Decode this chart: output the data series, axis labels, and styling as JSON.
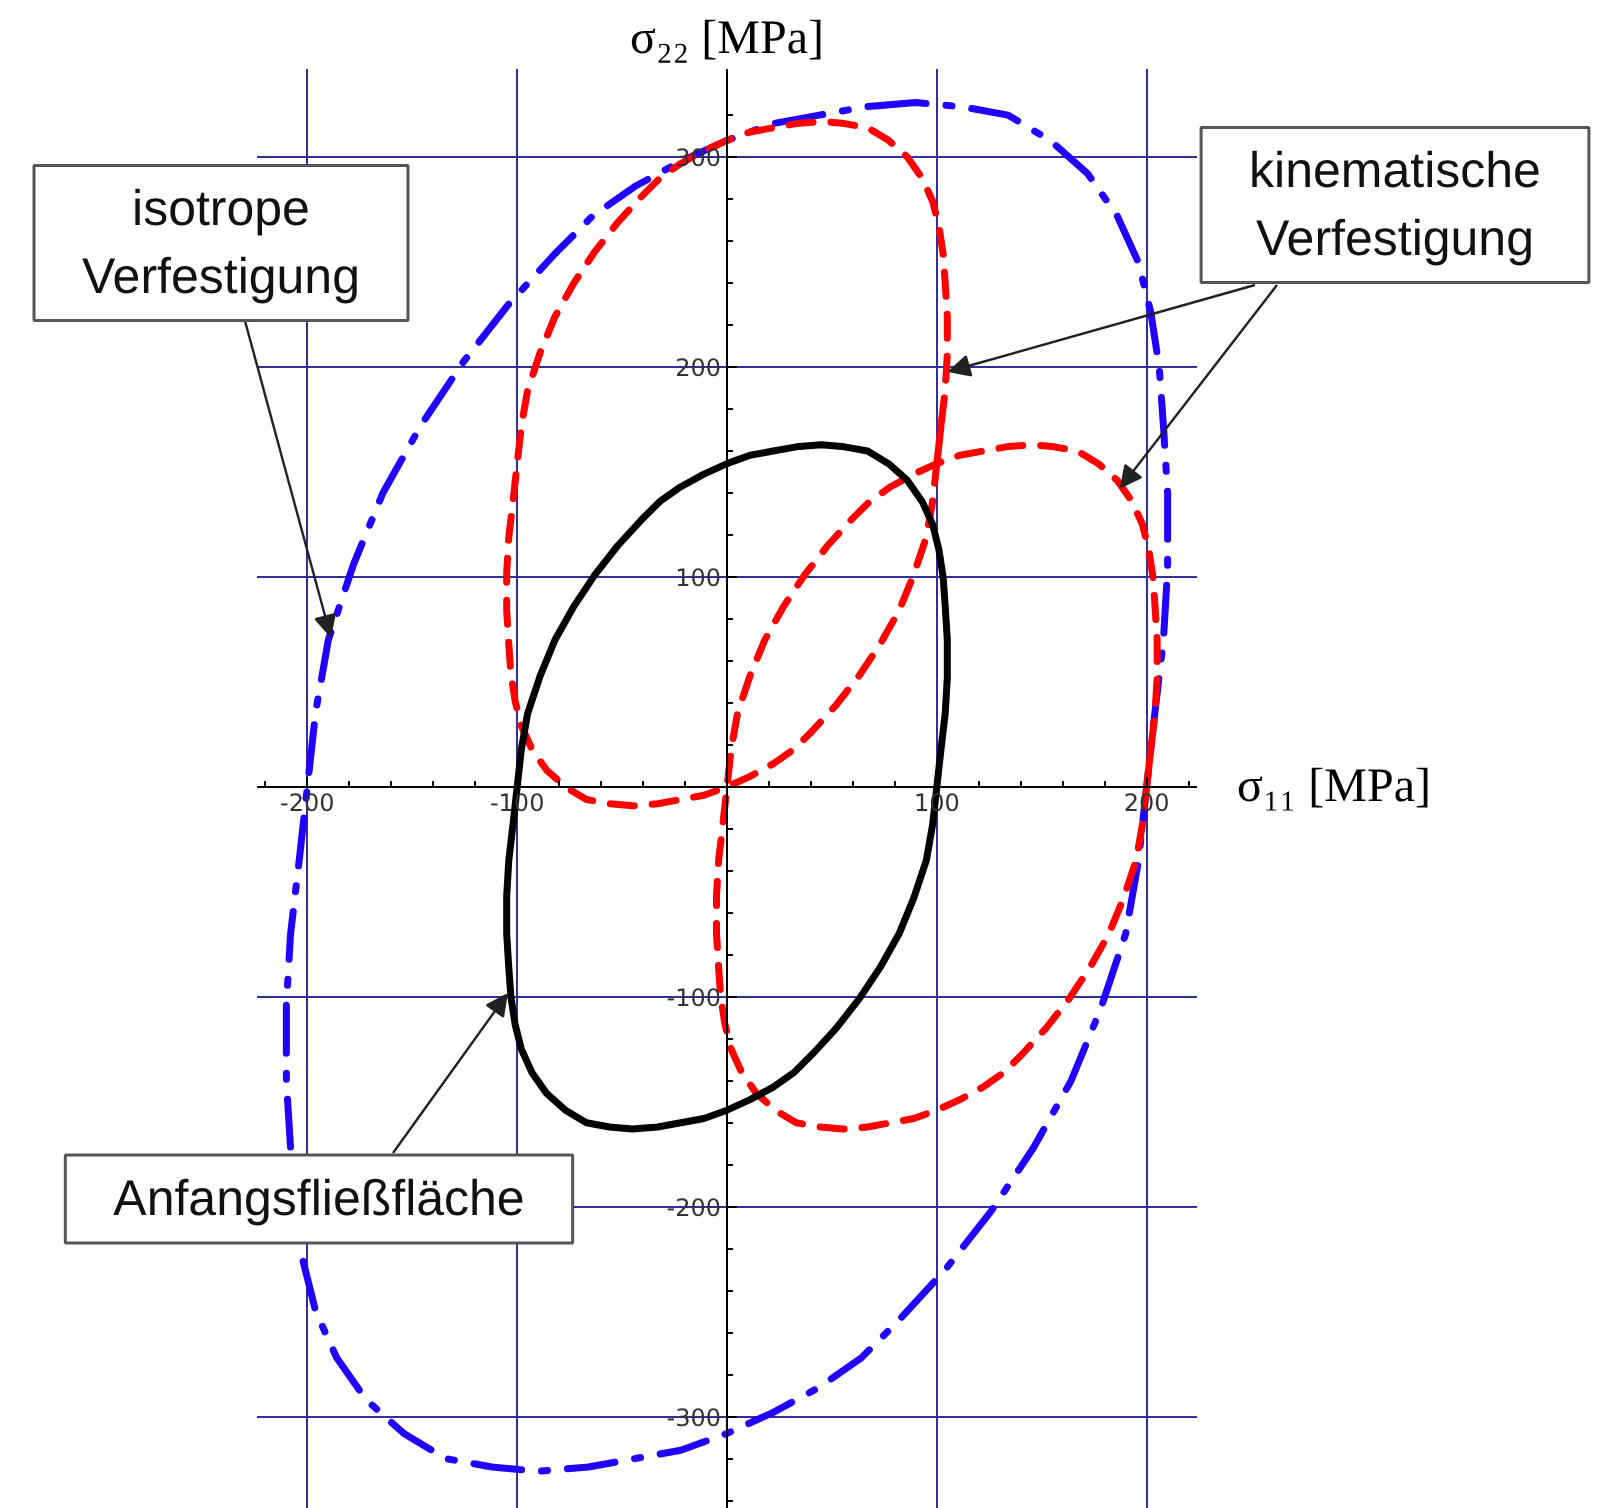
{
  "chart_data": {
    "type": "line",
    "xlabel": "σ₁₁ [MPa]",
    "ylabel": "σ₂₂ [MPa]",
    "xlim": [
      -224,
      224
    ],
    "ylim": [
      -344,
      342
    ],
    "xticks": [
      {
        "value": -220,
        "label": null
      },
      -200,
      {
        "value": -180,
        "label": null
      },
      {
        "value": -160,
        "label": null
      },
      {
        "value": -140,
        "label": null
      },
      {
        "value": -120,
        "label": null
      },
      -100,
      {
        "value": -80,
        "label": null
      },
      {
        "value": -60,
        "label": null
      },
      {
        "value": -40,
        "label": null
      },
      {
        "value": -20,
        "label": null
      },
      {
        "value": 20,
        "label": null
      },
      {
        "value": 40,
        "label": null
      },
      {
        "value": 60,
        "label": null
      },
      {
        "value": 80,
        "label": null
      },
      100,
      {
        "value": 120,
        "label": null
      },
      {
        "value": 140,
        "label": null
      },
      {
        "value": 160,
        "label": null
      },
      {
        "value": 180,
        "label": null
      },
      200,
      {
        "value": 220,
        "label": null
      }
    ],
    "yticks": [
      {
        "value": -340,
        "label": null
      },
      {
        "value": -320,
        "label": null
      },
      -300,
      {
        "value": -280,
        "label": null
      },
      {
        "value": -260,
        "label": null
      },
      {
        "value": -240,
        "label": null
      },
      {
        "value": -220,
        "label": null
      },
      -200,
      {
        "value": -180,
        "label": null
      },
      {
        "value": -160,
        "label": null
      },
      {
        "value": -140,
        "label": null
      },
      {
        "value": -120,
        "label": null
      },
      -100,
      {
        "value": -80,
        "label": null
      },
      {
        "value": -60,
        "label": null
      },
      {
        "value": -40,
        "label": null
      },
      {
        "value": -20,
        "label": null
      },
      {
        "value": 20,
        "label": null
      },
      {
        "value": 40,
        "label": null
      },
      {
        "value": 60,
        "label": null
      },
      {
        "value": 80,
        "label": null
      },
      100,
      {
        "value": 120,
        "label": null
      },
      {
        "value": 140,
        "label": null
      },
      {
        "value": 160,
        "label": null
      },
      {
        "value": 180,
        "label": null
      },
      200,
      {
        "value": 220,
        "label": null
      },
      {
        "value": 240,
        "label": null
      },
      {
        "value": 260,
        "label": null
      },
      {
        "value": 280,
        "label": null
      },
      300,
      {
        "value": 320,
        "label": null
      }
    ],
    "grid": true,
    "annotations": [
      {
        "text": "isotrope\nVerfestigung",
        "x": -189,
        "y": 72
      },
      {
        "text": "kinematische\nVerfestigung",
        "x": 106,
        "y": 198
      },
      {
        "text": "Anfangsfließfläche",
        "x": -105,
        "y": -99
      }
    ],
    "series": [
      {
        "color": "#2200ff",
        "line_style": "dashdot",
        "x": [
          90,
          66,
          44,
          22,
          0,
          -22,
          -44,
          -64,
          -82,
          -104,
          -126,
          -146,
          -164,
          -178,
          -190,
          -196,
          -200,
          -204,
          -208,
          -210,
          -210,
          -208,
          -206,
          -202,
          -196,
          -186,
          -172,
          -154,
          -134,
          -112,
          -90,
          -66,
          -44,
          -22,
          0,
          22,
          44,
          64,
          82,
          104,
          126,
          146,
          164,
          178,
          190,
          196,
          200,
          204,
          208,
          210,
          210,
          208,
          206,
          202,
          196,
          186,
          172,
          154,
          134,
          112,
          90,
          66
        ],
        "values": [
          326,
          324,
          320,
          316,
          308,
          298,
          286,
          272,
          254,
          230,
          202,
          172,
          140,
          106,
          70,
          36,
          0,
          -36,
          -70,
          -104,
          -140,
          -172,
          null,
          -226,
          -250,
          -272,
          -292,
          -308,
          -320,
          -324,
          -326,
          -324,
          -320,
          -316,
          -308,
          -298,
          -286,
          -272,
          -254,
          -230,
          -202,
          -172,
          -140,
          -106,
          -70,
          -36,
          0,
          36,
          70,
          104,
          140,
          172,
          200,
          226,
          250,
          272,
          292,
          308,
          320,
          324,
          326,
          324
        ]
      },
      {
        "color": "#ff0000",
        "line_style": "dashed",
        "x": [
          100,
          102,
          104,
          105,
          105,
          104,
          103,
          101,
          98,
          93,
          86,
          77,
          67,
          56,
          45,
          33,
          22,
          11,
          0,
          -11,
          -22,
          -32,
          -41,
          -52,
          -63,
          -73,
          -82,
          -89,
          -95,
          -98,
          -100,
          -102,
          -104,
          -105,
          -105,
          -104,
          -103,
          -101,
          -98,
          -93,
          -86,
          -77,
          -67,
          -56,
          -45,
          -33,
          -22,
          -11,
          0,
          11,
          22,
          32,
          41,
          52,
          63,
          73,
          82,
          89,
          95,
          98,
          100,
          102
        ],
        "values": [
          154,
          172,
          189,
          206,
          224,
          240,
          254,
          267,
          279,
          290,
          300,
          308,
          314,
          316,
          317,
          316,
          314,
          312,
          308,
          303,
          297,
          290,
          281,
          269,
          255,
          240,
          224,
          207,
          189,
          172,
          154,
          136,
          119,
          102,
          84,
          68,
          54,
          41,
          29,
          18,
          8,
          0,
          -6,
          -8,
          -9,
          -8,
          -6,
          -4,
          0,
          5,
          11,
          18,
          27,
          39,
          53,
          68,
          84,
          101,
          119,
          136,
          154,
          172
        ]
      },
      {
        "color": "#ff0000",
        "line_style": "dashed",
        "x": [
          200,
          202,
          204,
          205,
          205,
          204,
          203,
          201,
          198,
          193,
          186,
          177,
          167,
          156,
          145,
          133,
          122,
          111,
          100,
          89,
          78,
          68,
          59,
          48,
          37,
          27,
          18,
          11,
          5,
          2,
          0,
          -2,
          -4,
          -5,
          -5,
          -4,
          -3,
          -1,
          2,
          7,
          14,
          23,
          33,
          44,
          55,
          67,
          78,
          89,
          100,
          111,
          122,
          132,
          141,
          152,
          163,
          173,
          182,
          189,
          195,
          198,
          200,
          202
        ],
        "values": [
          0,
          18,
          35,
          52,
          70,
          86,
          100,
          113,
          125,
          136,
          146,
          154,
          160,
          162,
          163,
          162,
          160,
          158,
          154,
          149,
          143,
          136,
          127,
          115,
          101,
          86,
          70,
          53,
          35,
          18,
          0,
          -18,
          -35,
          -52,
          -70,
          -86,
          -100,
          -113,
          -125,
          -136,
          -146,
          -154,
          -160,
          -162,
          -163,
          -162,
          -160,
          -158,
          -154,
          -149,
          -143,
          -136,
          -127,
          -115,
          -101,
          -86,
          -70,
          -53,
          -35,
          -18,
          0,
          18
        ]
      },
      {
        "color": "#000000",
        "line_style": "solid",
        "x": [
          100,
          102,
          104,
          105,
          105,
          104,
          103,
          101,
          98,
          93,
          86,
          77,
          67,
          56,
          45,
          33,
          22,
          11,
          0,
          -11,
          -22,
          -32,
          -41,
          -52,
          -63,
          -73,
          -82,
          -89,
          -95,
          -98,
          -100,
          -102,
          -104,
          -105,
          -105,
          -104,
          -103,
          -101,
          -98,
          -93,
          -86,
          -77,
          -67,
          -56,
          -45,
          -33,
          -22,
          -11,
          0,
          11,
          22,
          32,
          41,
          52,
          63,
          73,
          82,
          89,
          95,
          98,
          100,
          102
        ],
        "values": [
          0,
          18,
          35,
          52,
          70,
          86,
          100,
          113,
          125,
          136,
          146,
          154,
          160,
          162,
          163,
          162,
          160,
          158,
          154,
          149,
          143,
          136,
          127,
          115,
          101,
          86,
          70,
          53,
          35,
          18,
          0,
          -18,
          -35,
          -52,
          -70,
          -86,
          -100,
          -113,
          -125,
          -136,
          -146,
          -154,
          -160,
          -162,
          -163,
          -162,
          -160,
          -158,
          -154,
          -149,
          -143,
          -136,
          -127,
          -115,
          -101,
          -86,
          -70,
          -53,
          -35,
          -18,
          0,
          18
        ]
      }
    ]
  }
}
